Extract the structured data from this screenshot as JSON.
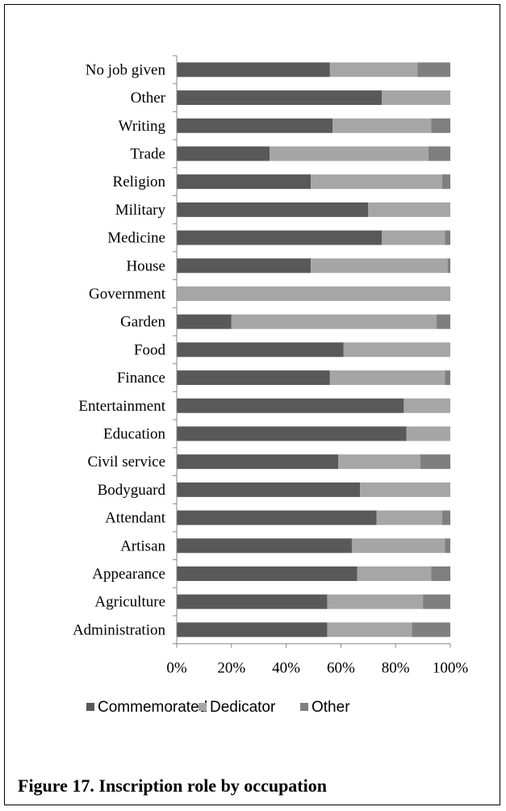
{
  "caption": "Figure 17. Inscription role by occupation",
  "chart_data": {
    "type": "bar",
    "orientation": "horizontal",
    "stacked": "percent",
    "title": "",
    "xlabel": "",
    "ylabel": "",
    "xlim": [
      0,
      100
    ],
    "xticks": [
      "0%",
      "20%",
      "40%",
      "60%",
      "80%",
      "100%"
    ],
    "legend_position": "bottom",
    "grid": false,
    "categories": [
      "No job given",
      "Other",
      "Writing",
      "Trade",
      "Religion",
      "Military",
      "Medicine",
      "House",
      "Government",
      "Garden",
      "Food",
      "Finance",
      "Entertainment",
      "Education",
      "Civil service",
      "Bodyguard",
      "Attendant",
      "Artisan",
      "Appearance",
      "Agriculture",
      "Administration"
    ],
    "series": [
      {
        "name": "Commemorated",
        "color": "#595959",
        "values": [
          56,
          75,
          57,
          34,
          49,
          70,
          75,
          49,
          0,
          20,
          61,
          56,
          83,
          84,
          59,
          67,
          73,
          64,
          66,
          55,
          55
        ]
      },
      {
        "name": "Dedicator",
        "color": "#a6a6a6",
        "values": [
          32,
          25,
          36,
          58,
          48,
          30,
          23,
          50,
          100,
          75,
          39,
          42,
          17,
          16,
          30,
          33,
          24,
          34,
          27,
          35,
          31
        ]
      },
      {
        "name": "Other",
        "color": "#7f7f7f",
        "values": [
          12,
          0,
          7,
          8,
          3,
          0,
          2,
          1,
          0,
          5,
          0,
          2,
          0,
          0,
          11,
          0,
          3,
          2,
          7,
          10,
          14
        ]
      }
    ]
  }
}
